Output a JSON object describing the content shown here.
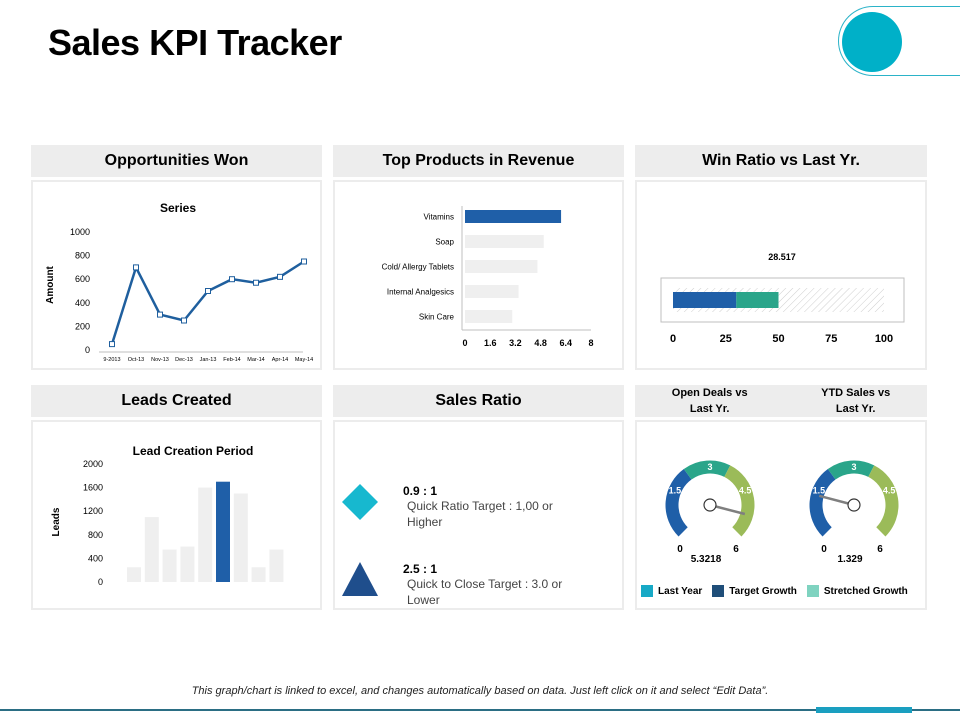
{
  "page": {
    "title": "Sales KPI Tracker",
    "footer": "This graph/chart is linked to excel, and changes automatically based on data. Just left click on it and select “Edit Data”."
  },
  "headers": {
    "opportunities": "Opportunities Won",
    "top_products": "Top Products in Revenue",
    "win_ratio": "Win Ratio vs Last Yr.",
    "leads": "Leads Created",
    "sales_ratio": "Sales Ratio",
    "open_deals_line1": "Open Deals vs",
    "open_deals_line2": "Last Yr.",
    "ytd_line1": "YTD Sales vs",
    "ytd_line2": "Last Yr."
  },
  "sales_ratio": {
    "items": [
      {
        "value": "0.9 : 1",
        "desc_line1": "Quick Ratio Target  : 1,00 or",
        "desc_line2": "Higher"
      },
      {
        "value": "2.5 : 1",
        "desc_line1": "Quick to Close Target  : 3.0 or",
        "desc_line2": "Lower"
      }
    ]
  },
  "legend": {
    "items": [
      {
        "label": "Last Year",
        "color": "#17a9c6"
      },
      {
        "label": "Target Growth",
        "color": "#1f4e79"
      },
      {
        "label": "Stretched Growth",
        "color": "#7fd3c0"
      }
    ]
  },
  "colors": {
    "accent": "#00b0c8",
    "line": "#1f5f9e",
    "bar_highlight": "#1f5fa8",
    "bar_light": "#efefef",
    "gauge_blue": "#1f5fa8",
    "gauge_teal": "#2aa58a",
    "gauge_green": "#9bbb59"
  },
  "chart_data": [
    {
      "type": "line",
      "title": "Series",
      "ylabel": "Amount",
      "xlabel": "",
      "categories": [
        "9-2013",
        "Oct-13",
        "Nov-13",
        "Dec-13",
        "Jan-13",
        "Feb-14",
        "Mar-14",
        "Apr-14",
        "May-14"
      ],
      "values": [
        50,
        700,
        300,
        250,
        500,
        600,
        570,
        620,
        750
      ],
      "ylim": [
        0,
        1000
      ],
      "yticks": [
        "0",
        "200",
        "400",
        "600",
        "800",
        "1000"
      ]
    },
    {
      "type": "bar",
      "orientation": "horizontal",
      "categories": [
        "Vitamins",
        "Soap",
        "Cold/ Allergy Tablets",
        "Internal Analgesics",
        "Skin Care"
      ],
      "values": [
        6.1,
        5.0,
        4.6,
        3.4,
        3.0
      ],
      "highlight": "Vitamins",
      "xlim": [
        0,
        8
      ],
      "xticks": [
        "0",
        "1.6",
        "3.2",
        "4.8",
        "6.4",
        "8"
      ]
    },
    {
      "type": "bar",
      "orientation": "horizontal-stacked",
      "data_label": "28.517",
      "segments": [
        {
          "value": 30,
          "color": "#1f5fa8"
        },
        {
          "value": 20,
          "color": "#2aa58a"
        }
      ],
      "xlim": [
        0,
        100
      ],
      "xticks": [
        "0",
        "25",
        "50",
        "75",
        "100"
      ]
    },
    {
      "type": "bar",
      "title": "Lead Creation Period",
      "ylabel": "Leads",
      "values": [
        250,
        1100,
        550,
        600,
        1600,
        1700,
        1500,
        250,
        550
      ],
      "highlight_index": 5,
      "ylim": [
        0,
        2000
      ],
      "yticks": [
        "0",
        "400",
        "800",
        "1200",
        "1600",
        "2000"
      ]
    },
    {
      "type": "gauge",
      "name": "Open Deals vs Last Yr.",
      "min": "0",
      "max": "6",
      "tick_labels": [
        "1.5",
        "3",
        "4.5"
      ],
      "value": 5.3218,
      "value_label": "5.3218"
    },
    {
      "type": "gauge",
      "name": "YTD Sales vs Last Yr.",
      "min": "0",
      "max": "6",
      "tick_labels": [
        "1.5",
        "3",
        "4.5"
      ],
      "value": 1.329,
      "value_label": "1.329"
    }
  ]
}
